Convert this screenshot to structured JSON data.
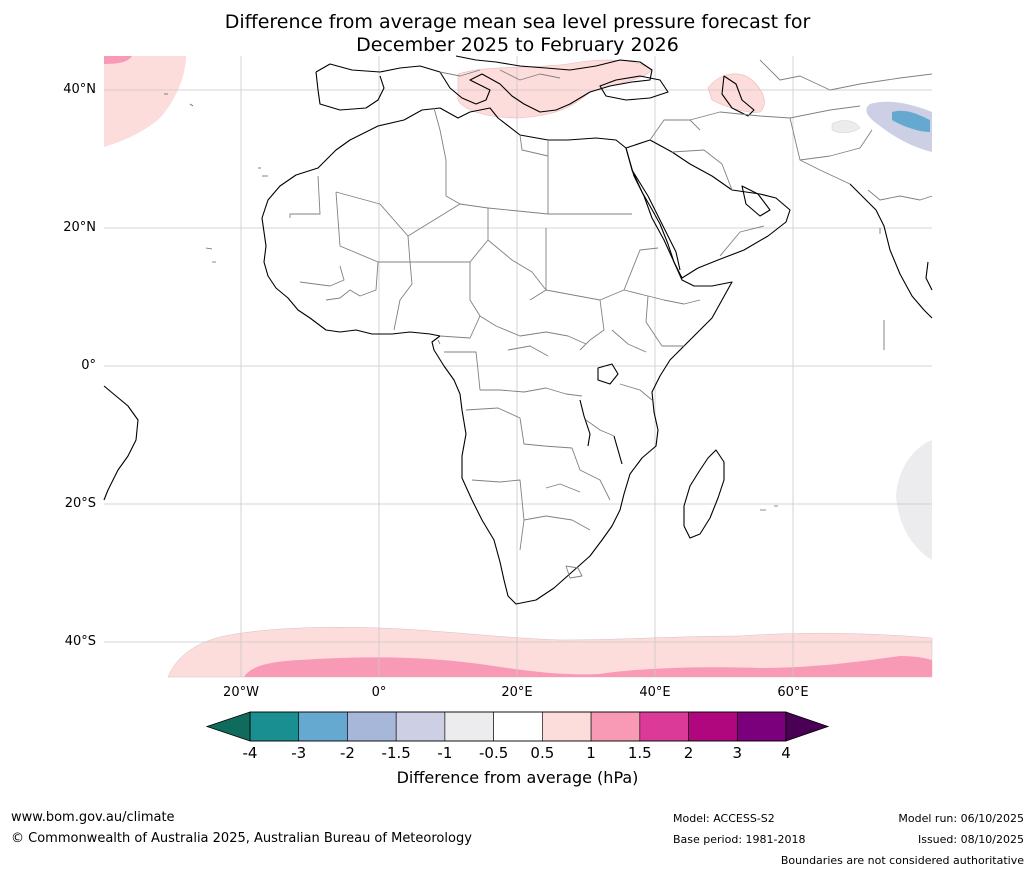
{
  "title": {
    "line1": "Difference from average mean sea level pressure forecast for",
    "line2": "December 2025 to February 2026"
  },
  "axes": {
    "lat_labels": [
      "40°N",
      "20°N",
      "0°",
      "20°S",
      "40°S"
    ],
    "lon_labels": [
      "20°W",
      "0°",
      "20°E",
      "40°E",
      "60°E"
    ]
  },
  "colorbar": {
    "ticks": [
      "-4",
      "-3",
      "-2",
      "-1.5",
      "-1",
      "-0.5",
      "0.5",
      "1",
      "1.5",
      "2",
      "3",
      "4"
    ],
    "colors": [
      "#1a8f92",
      "#66a9d0",
      "#a6b7d9",
      "#cdd0e5",
      "#ececee",
      "#ffffff",
      "#fddcdc",
      "#f89ab5",
      "#dc3a99",
      "#b0077f",
      "#7b007b"
    ],
    "under_color": "#0f6b5c",
    "over_color": "#4a0055",
    "label": "Difference from average (hPa)"
  },
  "footer": {
    "website": "www.bom.gov.au/climate",
    "copyright": "© Commonwealth of Australia 2025, Australian Bureau of Meteorology",
    "model": "Model: ACCESS-S2",
    "base_period": "Base period: 1981-2018",
    "model_run": "Model run: 06/10/2025",
    "issued": "Issued: 08/10/2025",
    "disclaimer": "Boundaries are not considered authoritative"
  }
}
